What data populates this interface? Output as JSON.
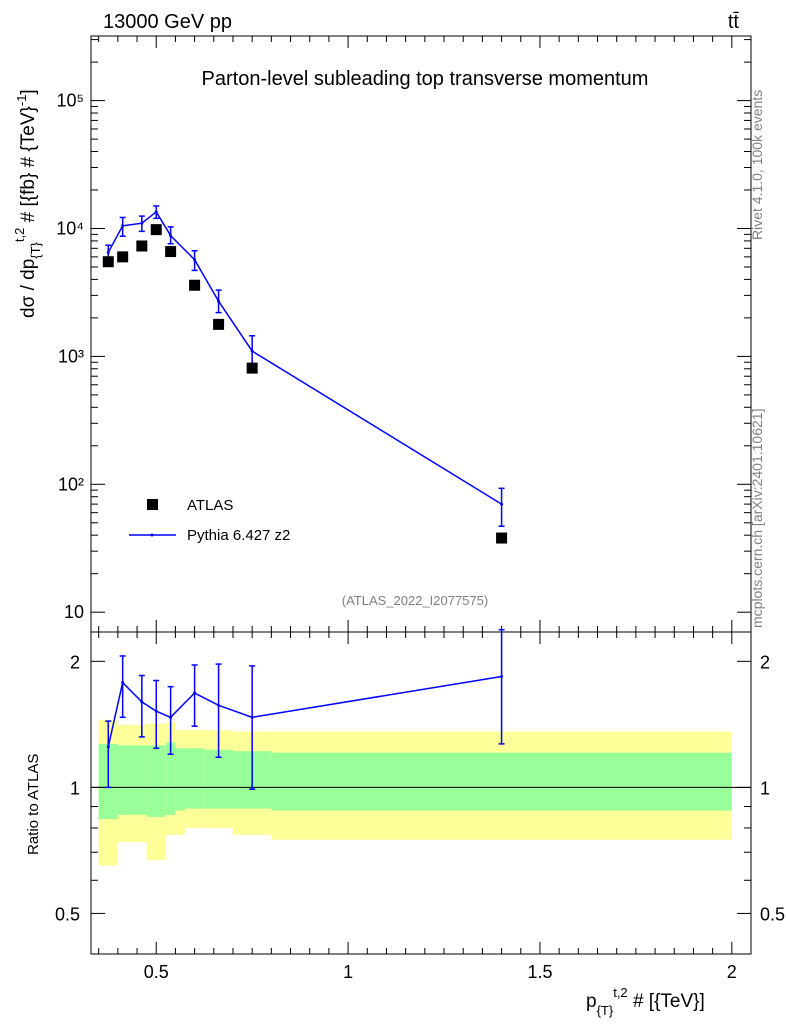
{
  "header": {
    "left": "13000 GeV pp",
    "right": "tt̄"
  },
  "side_text": {
    "rivet": "Rivet 4.1.0,  100k events",
    "mcplots": "mcplots.cern.ch [arXiv:2401.10621]"
  },
  "chart_data": {
    "type": "scatter",
    "title": "Parton-level subleading top transverse momentum",
    "analysis_tag": "(ATLAS_2022_I2077575)",
    "xlabel": "p_{T}^{t,2} # [{TeV}]",
    "ylabel": "dσ / dp_{T}^{t,2} # [{fb} # {TeV}^-1]",
    "ratio_ylabel": "Ratio to ATLAS",
    "xlim": [
      0.33,
      2.05
    ],
    "ylim": [
      7,
      320000
    ],
    "ylog": true,
    "ratio_ylim": [
      0.4,
      2.35
    ],
    "x_ticks": [
      {
        "v": 0.5,
        "label": "0.5"
      },
      {
        "v": 1,
        "label": "1"
      },
      {
        "v": 1.5,
        "label": "1.5"
      },
      {
        "v": 2,
        "label": "2"
      }
    ],
    "y_ticks": [
      {
        "v": 10,
        "label": "10"
      },
      {
        "v": 100,
        "label": "10²"
      },
      {
        "v": 1000,
        "label": "10³"
      },
      {
        "v": 10000,
        "label": "10⁴"
      },
      {
        "v": 100000,
        "label": "10⁵"
      }
    ],
    "ratio_ticks": [
      {
        "v": 0.5,
        "label": "0.5"
      },
      {
        "v": 1,
        "label": "1"
      },
      {
        "v": 2,
        "label": "2"
      }
    ],
    "series": [
      {
        "name": "ATLAS",
        "style": "marker",
        "color": "#000000",
        "x": [
          0.375,
          0.4125,
          0.4625,
          0.5,
          0.5375,
          0.6,
          0.6625,
          0.75,
          1.4
        ],
        "y": [
          5500,
          6000,
          7300,
          9800,
          6600,
          3600,
          1780,
          810,
          38
        ]
      },
      {
        "name": "Pythia 6.427 z2",
        "style": "line",
        "color": "#0000ff",
        "x": [
          0.375,
          0.4125,
          0.4625,
          0.5,
          0.5375,
          0.6,
          0.6625,
          0.75,
          1.4
        ],
        "y": [
          6500,
          10500,
          11000,
          13500,
          8800,
          5700,
          2700,
          1100,
          70
        ],
        "y_lo": [
          5500,
          8700,
          9500,
          12000,
          7600,
          4700,
          2200,
          850,
          47
        ],
        "y_hi": [
          7400,
          12200,
          12500,
          15000,
          10300,
          6700,
          3300,
          1450,
          93
        ],
        "ratio": [
          1.25,
          1.78,
          1.6,
          1.52,
          1.47,
          1.68,
          1.57,
          1.47,
          1.84
        ],
        "ratio_lo": [
          1.0,
          1.47,
          1.32,
          1.24,
          1.2,
          1.4,
          1.18,
          0.99,
          1.27
        ],
        "ratio_hi": [
          1.44,
          2.06,
          1.85,
          1.8,
          1.74,
          1.96,
          1.97,
          1.95,
          2.38
        ]
      }
    ],
    "uncertainty_bands": {
      "x_edges": [
        0.35,
        0.4,
        0.425,
        0.475,
        0.525,
        0.55,
        0.575,
        0.625,
        0.7,
        0.8,
        2.0
      ],
      "inner_lo": [
        0.84,
        0.86,
        0.86,
        0.85,
        0.86,
        0.88,
        0.89,
        0.89,
        0.89,
        0.88
      ],
      "inner_hi": [
        1.27,
        1.26,
        1.26,
        1.26,
        1.28,
        1.24,
        1.24,
        1.23,
        1.22,
        1.21
      ],
      "outer_lo": [
        0.65,
        0.74,
        0.74,
        0.67,
        0.77,
        0.77,
        0.8,
        0.8,
        0.77,
        0.75
      ],
      "outer_hi": [
        1.45,
        1.41,
        1.41,
        1.42,
        1.43,
        1.37,
        1.37,
        1.37,
        1.36,
        1.36
      ]
    }
  },
  "colors": {
    "band_inner": "#99ff99",
    "band_outer": "#ffff99",
    "mc": "#0000ff"
  }
}
